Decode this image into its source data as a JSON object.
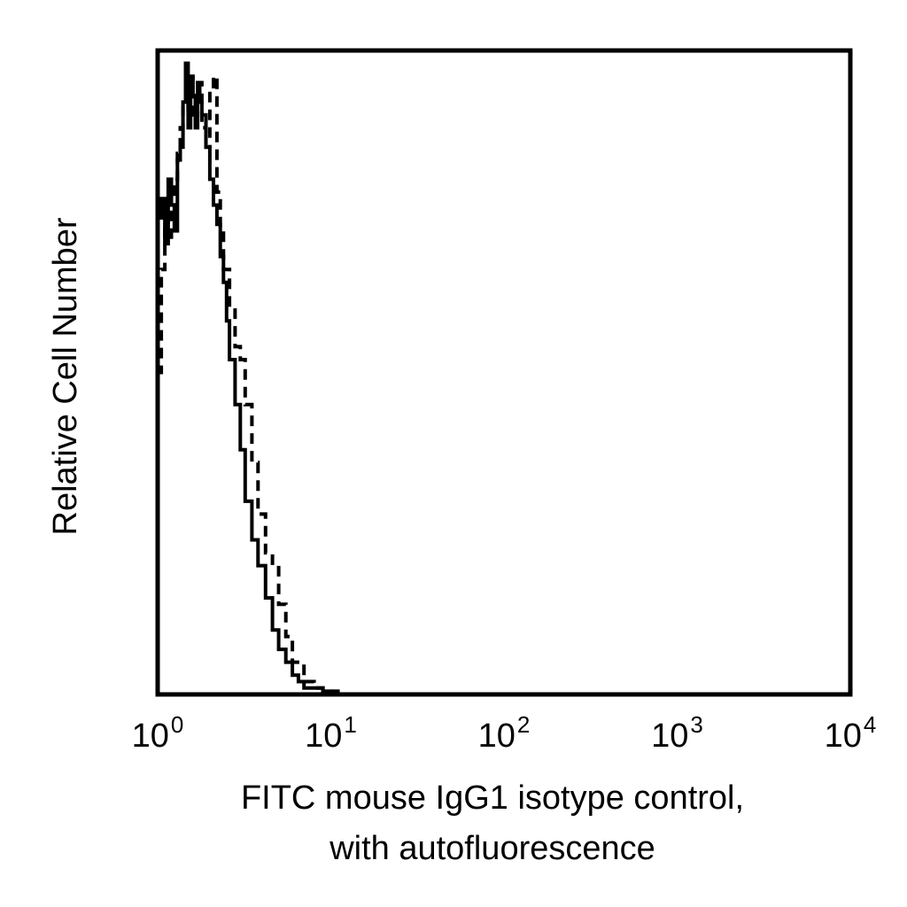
{
  "chart_data": {
    "type": "line",
    "title": "",
    "xlabel_lines": [
      "FITC mouse IgG1 isotype control,",
      "with autofluorescence"
    ],
    "ylabel": "Relative Cell Number",
    "x_scale": "log",
    "xlim": [
      1,
      10000
    ],
    "ylim": [
      0,
      100
    ],
    "x_ticks": [
      {
        "base": "10",
        "exp": "0",
        "value": 1
      },
      {
        "base": "10",
        "exp": "1",
        "value": 10
      },
      {
        "base": "10",
        "exp": "2",
        "value": 100
      },
      {
        "base": "10",
        "exp": "3",
        "value": 1000
      },
      {
        "base": "10",
        "exp": "4",
        "value": 10000
      }
    ],
    "grid": false,
    "legend": "none",
    "series": [
      {
        "style": "solid",
        "x": [
          1.0,
          1.05,
          1.1,
          1.15,
          1.2,
          1.25,
          1.3,
          1.35,
          1.4,
          1.45,
          1.5,
          1.55,
          1.6,
          1.65,
          1.7,
          1.75,
          1.8,
          1.9,
          2.0,
          2.1,
          2.2,
          2.3,
          2.4,
          2.5,
          2.6,
          2.8,
          3.0,
          3.2,
          3.5,
          3.8,
          4.2,
          4.6,
          5.0,
          5.5,
          6.0,
          6.5,
          7.0,
          8.0,
          9.0,
          10.0,
          11.0
        ],
        "y": [
          74,
          77,
          70,
          80,
          76,
          72,
          83,
          85,
          92,
          98,
          88,
          96,
          93,
          88,
          95,
          92,
          90,
          85,
          80,
          76,
          73,
          68,
          64,
          58,
          52,
          45,
          38,
          30,
          24,
          20,
          15,
          10,
          7,
          5,
          3,
          2,
          1,
          1,
          0.5,
          0.5,
          0.3
        ]
      },
      {
        "style": "dashed",
        "x": [
          1.0,
          1.05,
          1.1,
          1.15,
          1.2,
          1.25,
          1.3,
          1.35,
          1.4,
          1.5,
          1.6,
          1.7,
          1.8,
          1.9,
          2.0,
          2.1,
          2.2,
          2.3,
          2.4,
          2.6,
          2.8,
          3.0,
          3.2,
          3.5,
          3.8,
          4.2,
          4.6,
          5.0,
          5.5,
          6.0,
          7.0,
          8.0,
          9.0,
          10.0
        ],
        "y": [
          50,
          66,
          73,
          78,
          71,
          80,
          84,
          88,
          92,
          90,
          93,
          95,
          88,
          85,
          94,
          96,
          78,
          72,
          66,
          60,
          54,
          52,
          45,
          36,
          28,
          22,
          20,
          14,
          9,
          5,
          2,
          1,
          0.5,
          0.3
        ]
      }
    ]
  }
}
